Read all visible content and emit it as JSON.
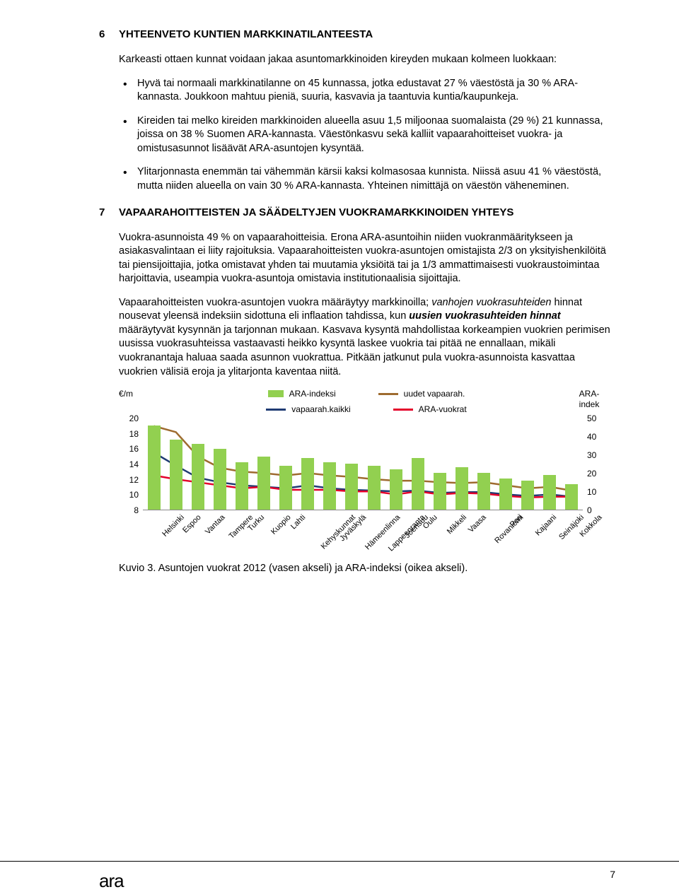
{
  "section6": {
    "num": "6",
    "title": "YHTEENVETO KUNTIEN MARKKINATILANTEESTA",
    "intro": "Karkeasti ottaen kunnat voidaan jakaa asuntomarkkinoiden kireyden mukaan kolmeen luokkaan:",
    "bullets": [
      "Hyvä tai normaali markkinatilanne on 45 kunnassa, jotka edustavat 27 % väestöstä ja 30 % ARA-kannasta. Joukkoon mahtuu pieniä, suuria, kasvavia ja taantuvia kuntia/kaupunkeja.",
      "Kireiden tai melko kireiden markkinoiden alueella asuu 1,5 miljoonaa suomalaista (29 %) 21 kunnassa, joissa on 38 % Suomen ARA-kannasta. Väestönkasvu sekä kalliit vapaarahoitteiset vuokra- ja omistusasunnot lisäävät ARA-asuntojen kysyntää.",
      "Ylitarjonnasta enemmän tai vähemmän kärsii kaksi kolmasosaa kunnista. Niissä asuu 41 % väestöstä, mutta niiden alueella on vain 30 % ARA-kannasta. Yhteinen nimittäjä on väestön väheneminen."
    ]
  },
  "section7": {
    "num": "7",
    "title": "VAPAARAHOITTEISTEN JA SÄÄDELTYJEN VUOKRAMARKKINOIDEN YHTEYS",
    "p1": "Vuokra-asunnoista 49 % on vapaarahoitteisia. Erona ARA-asuntoihin niiden vuokranmääritykseen ja asiakasvalintaan ei liity rajoituksia. Vapaarahoitteisten vuokra-asuntojen omistajista 2/3 on yksityishenkilöitä tai piensijoittajia, jotka omistavat yhden tai muutamia yksiöitä tai ja 1/3 ammattimaisesti vuokraustoimintaa harjoittavia, useampia vuokra-asuntoja omistavia institutionaalisia sijoittajia.",
    "p2_pre": "Vapaarahoitteisten vuokra-asuntojen vuokra määräytyy markkinoilla; ",
    "p2_it1": "vanhojen vuokrasuhteiden",
    "p2_mid": " hinnat nousevat yleensä indeksiin sidottuna eli inflaation tahdissa, kun ",
    "p2_it2": "uusien vuokrasuhteiden hinnat",
    "p2_post": " määräytyvät kysynnän ja tarjonnan mukaan. Kasvava kysyntä mahdollistaa korkeampien vuokrien perimisen uusissa vuokrasuhteissa vastaavasti heikko kysyntä laskee vuokria tai pitää ne ennallaan, mikäli vuokranantaja haluaa saada asunnon vuokrattua. Pitkään jatkunut pula vuokra-asunnoista kasvattaa vuokrien välisiä eroja ja ylitarjonta kaventaa niitä."
  },
  "chart": {
    "y_left_label": "€/m",
    "y_right_label": "ARA-indek",
    "y_left_ticks": [
      20,
      18,
      16,
      14,
      12,
      10,
      8
    ],
    "y_left_min": 8,
    "y_left_max": 20,
    "y_right_ticks": [
      50,
      40,
      30,
      20,
      10,
      0
    ],
    "y_right_min": 0,
    "y_right_max": 50,
    "legend": [
      {
        "label": "ARA-indeksi",
        "type": "bar",
        "color": "#92d050"
      },
      {
        "label": "uudet vapaarah.",
        "type": "line",
        "color": "#9e6b2f"
      },
      {
        "label": "vapaarah.kaikki",
        "type": "line",
        "color": "#1f3b73"
      },
      {
        "label": "ARA-vuokrat",
        "type": "line",
        "color": "#e4002b"
      }
    ],
    "categories": [
      "Helsinki",
      "Espoo",
      "Vantaa",
      "Tampere",
      "Turku",
      "Kuopio",
      "Lahti",
      "Kehyskunnat",
      "Jyväskylä",
      "Hämeenlinna",
      "Lappeenranta",
      "Joensuu",
      "Oulu",
      "Mikkeli",
      "Vaasa",
      "Rovaniemi",
      "Pori",
      "Kajaani",
      "Seinäjoki",
      "Kokkola"
    ],
    "bar_values": [
      46,
      38,
      36,
      33,
      26,
      29,
      24,
      28,
      26,
      25,
      24,
      22,
      28,
      20,
      23,
      20,
      17,
      16,
      19,
      14
    ],
    "line_uudet": [
      19.0,
      18.2,
      15.0,
      13.5,
      13.0,
      12.8,
      12.5,
      12.8,
      12.5,
      12.3,
      12.0,
      11.8,
      11.8,
      11.6,
      11.5,
      11.6,
      11.2,
      10.8,
      11.0,
      10.5
    ],
    "line_kaikki": [
      15.5,
      13.8,
      12.2,
      11.6,
      11.2,
      11.0,
      10.8,
      11.2,
      10.8,
      10.6,
      10.5,
      10.4,
      10.5,
      10.2,
      10.3,
      10.3,
      10.0,
      9.8,
      10.0,
      9.7
    ],
    "line_ara": [
      12.5,
      12.0,
      11.6,
      11.2,
      10.8,
      11.0,
      10.6,
      10.6,
      10.6,
      10.4,
      10.4,
      10.0,
      10.4,
      10.0,
      10.2,
      10.1,
      9.8,
      9.6,
      9.7,
      9.7
    ],
    "colors": {
      "bar": "#92d050",
      "uudet": "#9e6b2f",
      "kaikki": "#1f3b73",
      "ara": "#e4002b"
    },
    "caption": "Kuvio 3. Asuntojen vuokrat 2012 (vasen akseli) ja ARA-indeksi (oikea akseli)."
  },
  "footer": {
    "page": "7",
    "logo": "ara"
  }
}
